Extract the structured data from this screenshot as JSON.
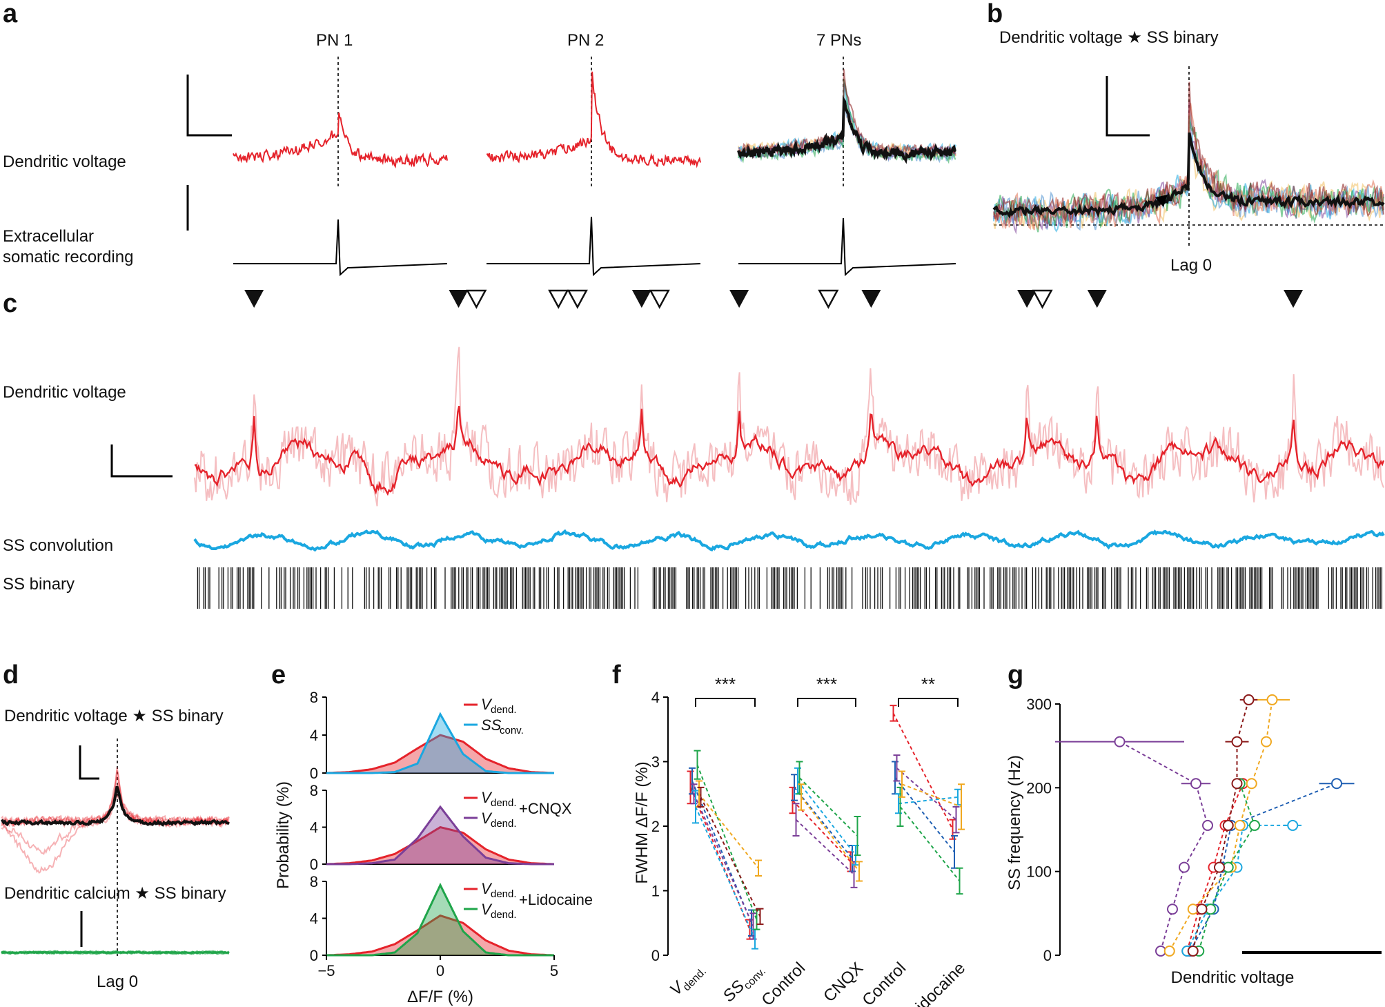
{
  "panels": {
    "a": "a",
    "b": "b",
    "c": "c",
    "d": "d",
    "e": "e",
    "f": "f",
    "g": "g"
  },
  "panel_a": {
    "titles": [
      "PN 1",
      "PN 2",
      "7 PNs"
    ],
    "row_labels": [
      "Dendritic voltage",
      "Extracellular",
      "somatic recording"
    ]
  },
  "panel_b": {
    "title": "Dendritic voltage ★ SS binary",
    "xlabel": "Lag 0"
  },
  "panel_c": {
    "row_labels": [
      "Dendritic voltage",
      "SS convolution",
      "SS binary"
    ],
    "markers": [
      {
        "pos": 0.05,
        "type": "filled"
      },
      {
        "pos": 0.222,
        "type": "filled"
      },
      {
        "pos": 0.237,
        "type": "open"
      },
      {
        "pos": 0.306,
        "type": "open"
      },
      {
        "pos": 0.322,
        "type": "open"
      },
      {
        "pos": 0.376,
        "type": "filled"
      },
      {
        "pos": 0.391,
        "type": "open"
      },
      {
        "pos": 0.458,
        "type": "filled"
      },
      {
        "pos": 0.533,
        "type": "open"
      },
      {
        "pos": 0.569,
        "type": "filled"
      },
      {
        "pos": 0.7,
        "type": "filled"
      },
      {
        "pos": 0.713,
        "type": "open"
      },
      {
        "pos": 0.759,
        "type": "filled"
      },
      {
        "pos": 0.924,
        "type": "filled"
      }
    ]
  },
  "panel_d": {
    "title_top": "Dendritic voltage ★ SS binary",
    "title_bottom": "Dendritic calcium ★ SS binary",
    "xlabel": "Lag 0"
  },
  "panel_e": {
    "ylabel": "Probability (%)",
    "xlabel": "ΔF/F (%)",
    "xticks": [
      "−5",
      "0",
      "5"
    ],
    "yticks": [
      "0",
      "4",
      "8"
    ],
    "legend_vdend": "V",
    "legend_vdend_sub": "dend.",
    "legend_ss": "SS",
    "legend_ss_sub": "conv.",
    "legend_cnqx": "+CNQX",
    "legend_lido": "+Lidocaine",
    "colors": {
      "vdend": "#e5232b",
      "ss": "#1aa7e0",
      "cnqx": "#7b3f98",
      "lido": "#1fa54a"
    }
  },
  "panel_f": {
    "ylabel": "FWHM ΔF/F (%)",
    "yticks": [
      "0",
      "1",
      "2",
      "3",
      "4"
    ],
    "xticks": [
      "V",
      "SS",
      "Control",
      "CNQX",
      "Control",
      "Lidocaine"
    ],
    "xtick_subs": [
      "dend.",
      "conv.",
      "",
      "",
      "",
      ""
    ],
    "significance": [
      "***",
      "***",
      "**"
    ]
  },
  "panel_g": {
    "ylabel": "SS frequency (Hz)",
    "xlabel": "Dendritic voltage",
    "yticks": [
      "0",
      "100",
      "200",
      "300"
    ]
  },
  "chart_data": [
    {
      "type": "area",
      "panel": "e-top",
      "x": [
        -5,
        -4,
        -3,
        -2,
        -1,
        0,
        1,
        2,
        3,
        4,
        5
      ],
      "series": [
        {
          "name": "Vdend.",
          "values": [
            0,
            0.1,
            0.4,
            1.1,
            2.6,
            4.0,
            3.3,
            1.5,
            0.5,
            0.1,
            0
          ]
        },
        {
          "name": "SSconv.",
          "values": [
            0,
            0,
            0,
            0.1,
            1.0,
            6.2,
            2.0,
            0.2,
            0,
            0,
            0
          ]
        }
      ],
      "xlim": [
        -5,
        5
      ],
      "ylim": [
        0,
        8
      ]
    },
    {
      "type": "area",
      "panel": "e-middle",
      "x": [
        -5,
        -4,
        -3,
        -2,
        -1,
        0,
        1,
        2,
        3,
        4,
        5
      ],
      "series": [
        {
          "name": "Vdend.",
          "values": [
            0,
            0.1,
            0.4,
            1.1,
            2.5,
            4.0,
            3.4,
            1.6,
            0.5,
            0.1,
            0
          ]
        },
        {
          "name": "Vdend.+CNQX",
          "values": [
            0,
            0,
            0.1,
            0.5,
            2.8,
            6.2,
            3.0,
            0.7,
            0.1,
            0,
            0
          ]
        }
      ],
      "xlim": [
        -5,
        5
      ],
      "ylim": [
        0,
        8
      ]
    },
    {
      "type": "area",
      "panel": "e-bottom",
      "x": [
        -5,
        -4,
        -3,
        -2,
        -1,
        0,
        1,
        2,
        3,
        4,
        5
      ],
      "series": [
        {
          "name": "Vdend.",
          "values": [
            0,
            0.1,
            0.4,
            1.2,
            2.7,
            4.3,
            3.5,
            1.6,
            0.5,
            0.1,
            0
          ]
        },
        {
          "name": "Vdend.+Lidocaine",
          "values": [
            0,
            0,
            0,
            0.3,
            2.4,
            7.6,
            2.6,
            0.3,
            0,
            0,
            0
          ]
        }
      ],
      "xlim": [
        -5,
        5
      ],
      "ylim": [
        0,
        8
      ]
    },
    {
      "type": "line",
      "panel": "f",
      "categories": [
        "Vdend.",
        "SSconv.",
        "Control",
        "CNQX",
        "Control",
        "Lidocaine"
      ],
      "groups": [
        {
          "pair": [
            "Vdend.",
            "SSconv."
          ],
          "lines": [
            {
              "color": "#e5232b",
              "values": [
                2.6,
                0.4
              ],
              "err": [
                0.25,
                0.15
              ]
            },
            {
              "color": "#1f5fb3",
              "values": [
                2.7,
                0.5
              ],
              "err": [
                0.2,
                0.2
              ]
            },
            {
              "color": "#7b3f98",
              "values": [
                2.5,
                0.45
              ],
              "err": [
                0.15,
                0.2
              ]
            },
            {
              "color": "#1aa7e0",
              "values": [
                2.3,
                0.25
              ],
              "err": [
                0.25,
                0.15
              ]
            },
            {
              "color": "#1fa54a",
              "values": [
                2.95,
                0.55
              ],
              "err": [
                0.22,
                0.15
              ]
            },
            {
              "color": "#f0a820",
              "values": [
                2.5,
                1.35
              ],
              "err": [
                0.2,
                0.12
              ]
            },
            {
              "color": "#8b1a1a",
              "values": [
                2.45,
                0.6
              ],
              "err": [
                0.15,
                0.12
              ]
            }
          ]
        },
        {
          "pair": [
            "Control",
            "CNQX"
          ],
          "lines": [
            {
              "color": "#e5232b",
              "values": [
                2.4,
                1.45
              ],
              "err": [
                0.2,
                0.15
              ]
            },
            {
              "color": "#1f5fb3",
              "values": [
                2.6,
                1.5
              ],
              "err": [
                0.2,
                0.2
              ]
            },
            {
              "color": "#7b3f98",
              "values": [
                2.1,
                1.25
              ],
              "err": [
                0.25,
                0.2
              ]
            },
            {
              "color": "#1aa7e0",
              "values": [
                2.7,
                1.55
              ],
              "err": [
                0.2,
                0.15
              ]
            },
            {
              "color": "#1fa54a",
              "values": [
                2.75,
                1.85
              ],
              "err": [
                0.25,
                0.3
              ]
            },
            {
              "color": "#f0a820",
              "values": [
                2.45,
                1.3
              ],
              "err": [
                0.2,
                0.15
              ]
            }
          ]
        },
        {
          "pair": [
            "Control",
            "Lidocaine"
          ],
          "lines": [
            {
              "color": "#e5232b",
              "values": [
                3.75,
                1.95
              ],
              "err": [
                0.12,
                0.15
              ]
            },
            {
              "color": "#1f5fb3",
              "values": [
                2.75,
                1.6
              ],
              "err": [
                0.25,
                0.25
              ]
            },
            {
              "color": "#7b3f98",
              "values": [
                2.9,
                2.1
              ],
              "err": [
                0.2,
                0.2
              ]
            },
            {
              "color": "#1aa7e0",
              "values": [
                2.35,
                2.45
              ],
              "err": [
                0.15,
                0.12
              ]
            },
            {
              "color": "#1fa54a",
              "values": [
                2.3,
                1.15
              ],
              "err": [
                0.3,
                0.2
              ]
            },
            {
              "color": "#f0a820",
              "values": [
                2.65,
                2.3
              ],
              "err": [
                0.2,
                0.35
              ]
            }
          ]
        }
      ],
      "ylim": [
        0,
        4
      ]
    },
    {
      "type": "scatter",
      "panel": "g",
      "y_levels": [
        5,
        55,
        105,
        155,
        205,
        255,
        305
      ],
      "series": [
        {
          "color": "#7b3f98",
          "x": [
            0.24,
            0.28,
            0.32,
            0.4,
            0.36,
            0.1
          ],
          "y": [
            5,
            55,
            105,
            155,
            205,
            255
          ],
          "err": [
            0,
            0,
            0,
            0,
            0.05,
            0.22
          ]
        },
        {
          "color": "#e5232b",
          "x": [
            0.33,
            0.37,
            0.42,
            0.46,
            0.52
          ],
          "y": [
            5,
            55,
            105,
            155,
            205
          ],
          "err": [
            0,
            0,
            0,
            0,
            0
          ]
        },
        {
          "color": "#1f5fb3",
          "x": [
            0.34,
            0.42,
            0.45,
            0.48,
            0.84
          ],
          "y": [
            5,
            55,
            105,
            155,
            205
          ],
          "err": [
            0,
            0,
            0,
            0,
            0.06
          ]
        },
        {
          "color": "#1aa7e0",
          "x": [
            0.33,
            0.4,
            0.5,
            0.52,
            0.69
          ],
          "y": [
            5,
            55,
            105,
            155,
            155
          ],
          "err": [
            0,
            0,
            0,
            0,
            0.03
          ]
        },
        {
          "color": "#f0a820",
          "x": [
            0.27,
            0.35,
            0.48,
            0.51,
            0.55,
            0.6,
            0.62
          ],
          "y": [
            5,
            55,
            105,
            155,
            205,
            255,
            305
          ],
          "err": [
            0,
            0,
            0,
            0,
            0,
            0,
            0.06
          ]
        },
        {
          "color": "#1fa54a",
          "x": [
            0.37,
            0.41,
            0.47,
            0.56,
            0.51
          ],
          "y": [
            5,
            55,
            105,
            155,
            205
          ],
          "err": [
            0,
            0,
            0,
            0,
            0
          ]
        },
        {
          "color": "#8b1a1a",
          "x": [
            0.35,
            0.38,
            0.44,
            0.47,
            0.5,
            0.5,
            0.54
          ],
          "y": [
            5,
            55,
            105,
            155,
            205,
            255,
            305
          ],
          "err": [
            0,
            0,
            0,
            0,
            0,
            0.04,
            0.03
          ]
        }
      ],
      "ylim": [
        0,
        300
      ]
    }
  ]
}
